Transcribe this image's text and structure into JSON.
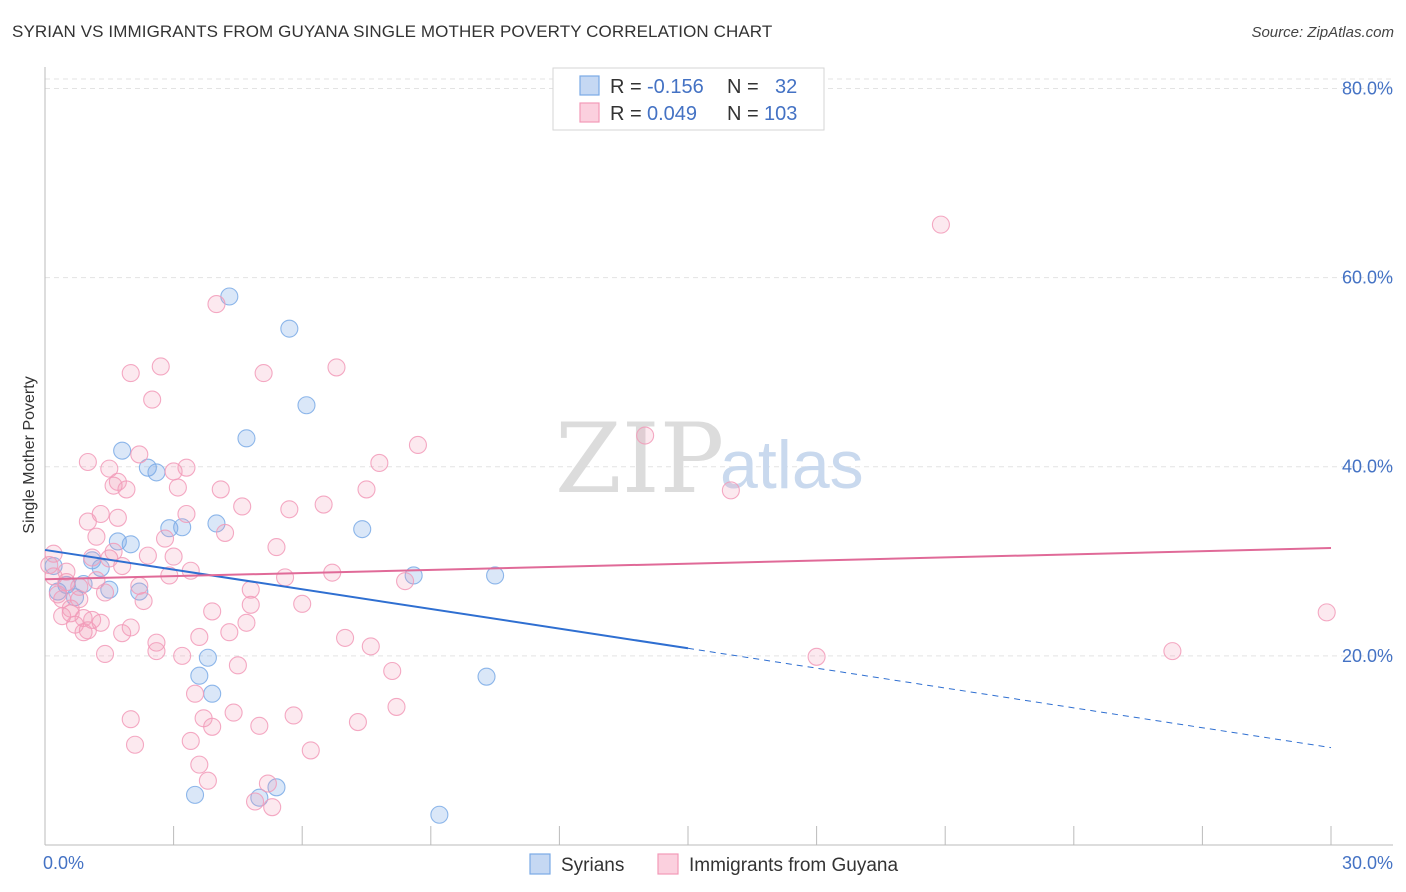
{
  "title": "SYRIAN VS IMMIGRANTS FROM GUYANA SINGLE MOTHER POVERTY CORRELATION CHART",
  "source": "Source: ZipAtlas.com",
  "watermark": {
    "zip": "ZIP",
    "atlas": "atlas"
  },
  "legend": {
    "r_label": "R =",
    "n_label": "N =",
    "rows": [
      {
        "name": "Syrians",
        "r": "-0.156",
        "n": "32",
        "color": "#7aaae6"
      },
      {
        "name": "Immigrants from Guyana",
        "r": "0.049",
        "n": "103",
        "color": "#f29ab8"
      }
    ]
  },
  "chart_data": {
    "type": "scatter",
    "title": "SYRIAN VS IMMIGRANTS FROM GUYANA SINGLE MOTHER POVERTY CORRELATION CHART",
    "xlabel": "",
    "ylabel": "Single Mother Poverty",
    "xlim": [
      0,
      30
    ],
    "ylim": [
      0,
      80
    ],
    "x_tick_labels": [
      "0.0%",
      "30.0%"
    ],
    "y_ticks": [
      20,
      40,
      60,
      80
    ],
    "y_tick_labels": [
      "20.0%",
      "40.0%",
      "60.0%",
      "80.0%"
    ],
    "series": [
      {
        "name": "Syrians",
        "color": "#7aaae6",
        "trend": {
          "x0": 0,
          "y0": 31.2,
          "x1": 15,
          "y1": 20.8,
          "dash_to_x": 30,
          "dash_to_y": 10.3
        },
        "points": [
          [
            0.2,
            29.5
          ],
          [
            0.3,
            26.8
          ],
          [
            0.5,
            27.5
          ],
          [
            0.7,
            26.2
          ],
          [
            0.9,
            27.6
          ],
          [
            1.1,
            30.1
          ],
          [
            1.3,
            29.3
          ],
          [
            1.5,
            27.0
          ],
          [
            1.7,
            32.1
          ],
          [
            1.8,
            41.7
          ],
          [
            2.0,
            31.8
          ],
          [
            2.2,
            26.8
          ],
          [
            2.4,
            39.9
          ],
          [
            2.6,
            39.4
          ],
          [
            2.9,
            33.5
          ],
          [
            3.2,
            33.6
          ],
          [
            3.5,
            5.3
          ],
          [
            3.6,
            17.9
          ],
          [
            3.8,
            19.8
          ],
          [
            3.9,
            16.0
          ],
          [
            4.0,
            34.0
          ],
          [
            4.3,
            58.0
          ],
          [
            4.7,
            43.0
          ],
          [
            5.0,
            5.0
          ],
          [
            5.4,
            6.1
          ],
          [
            5.7,
            54.6
          ],
          [
            6.1,
            46.5
          ],
          [
            7.4,
            33.4
          ],
          [
            8.6,
            28.5
          ],
          [
            9.2,
            3.2
          ],
          [
            10.3,
            17.8
          ],
          [
            10.5,
            28.5
          ]
        ]
      },
      {
        "name": "Immigrants from Guyana",
        "color": "#f29ab8",
        "trend": {
          "x0": 0,
          "y0": 28.1,
          "x1": 30,
          "y1": 31.4
        },
        "points": [
          [
            0.1,
            29.6
          ],
          [
            0.2,
            28.4
          ],
          [
            0.3,
            26.5
          ],
          [
            0.4,
            24.2
          ],
          [
            0.5,
            27.8
          ],
          [
            0.6,
            25.0
          ],
          [
            0.7,
            23.3
          ],
          [
            0.8,
            26.0
          ],
          [
            0.9,
            22.5
          ],
          [
            1.0,
            40.5
          ],
          [
            1.0,
            34.2
          ],
          [
            1.1,
            30.4
          ],
          [
            1.2,
            28.0
          ],
          [
            1.3,
            23.5
          ],
          [
            1.4,
            20.2
          ],
          [
            1.5,
            39.8
          ],
          [
            1.5,
            30.3
          ],
          [
            1.6,
            38.0
          ],
          [
            1.7,
            34.6
          ],
          [
            1.8,
            22.4
          ],
          [
            1.9,
            37.6
          ],
          [
            2.0,
            49.9
          ],
          [
            2.0,
            13.3
          ],
          [
            2.1,
            10.6
          ],
          [
            2.2,
            41.3
          ],
          [
            2.3,
            25.8
          ],
          [
            2.4,
            30.6
          ],
          [
            2.5,
            47.1
          ],
          [
            2.6,
            21.4
          ],
          [
            2.7,
            50.6
          ],
          [
            2.9,
            28.5
          ],
          [
            3.0,
            39.5
          ],
          [
            3.1,
            37.8
          ],
          [
            3.2,
            20.0
          ],
          [
            3.3,
            39.9
          ],
          [
            3.4,
            11.0
          ],
          [
            3.5,
            16.0
          ],
          [
            3.6,
            22.0
          ],
          [
            3.7,
            13.4
          ],
          [
            3.9,
            12.5
          ],
          [
            3.9,
            24.7
          ],
          [
            4.0,
            57.2
          ],
          [
            4.1,
            37.6
          ],
          [
            4.2,
            33.0
          ],
          [
            4.3,
            22.5
          ],
          [
            4.5,
            19.0
          ],
          [
            4.6,
            35.8
          ],
          [
            4.7,
            23.5
          ],
          [
            4.8,
            27.0
          ],
          [
            4.9,
            4.6
          ],
          [
            5.0,
            12.6
          ],
          [
            5.1,
            49.9
          ],
          [
            5.2,
            6.5
          ],
          [
            5.3,
            4.0
          ],
          [
            5.4,
            31.5
          ],
          [
            5.7,
            35.5
          ],
          [
            5.8,
            13.7
          ],
          [
            6.0,
            25.5
          ],
          [
            6.2,
            10.0
          ],
          [
            6.5,
            36.0
          ],
          [
            6.8,
            50.5
          ],
          [
            7.0,
            21.9
          ],
          [
            7.3,
            13.0
          ],
          [
            7.5,
            37.6
          ],
          [
            7.8,
            40.4
          ],
          [
            8.1,
            18.4
          ],
          [
            8.2,
            14.6
          ],
          [
            8.4,
            27.9
          ],
          [
            8.7,
            42.3
          ],
          [
            14.0,
            43.3
          ],
          [
            16.0,
            37.5
          ],
          [
            18.0,
            19.9
          ],
          [
            20.9,
            65.6
          ],
          [
            26.3,
            20.5
          ],
          [
            29.9,
            24.6
          ],
          [
            0.2,
            30.8
          ],
          [
            0.4,
            26.0
          ],
          [
            0.6,
            24.5
          ],
          [
            0.8,
            27.3
          ],
          [
            1.0,
            22.7
          ],
          [
            1.2,
            32.6
          ],
          [
            1.4,
            26.7
          ],
          [
            1.6,
            31.0
          ],
          [
            1.8,
            29.5
          ],
          [
            2.2,
            27.4
          ],
          [
            2.6,
            20.5
          ],
          [
            3.0,
            30.5
          ],
          [
            3.3,
            35.0
          ],
          [
            3.6,
            8.5
          ],
          [
            3.8,
            6.8
          ],
          [
            4.4,
            14.0
          ],
          [
            5.6,
            28.3
          ],
          [
            0.5,
            28.9
          ],
          [
            0.9,
            24.0
          ],
          [
            1.1,
            23.8
          ],
          [
            1.3,
            35.0
          ],
          [
            1.7,
            38.4
          ],
          [
            2.0,
            23.0
          ],
          [
            2.8,
            32.4
          ],
          [
            3.4,
            29.0
          ],
          [
            4.8,
            25.4
          ],
          [
            6.7,
            28.8
          ],
          [
            7.6,
            21.0
          ]
        ]
      }
    ]
  }
}
